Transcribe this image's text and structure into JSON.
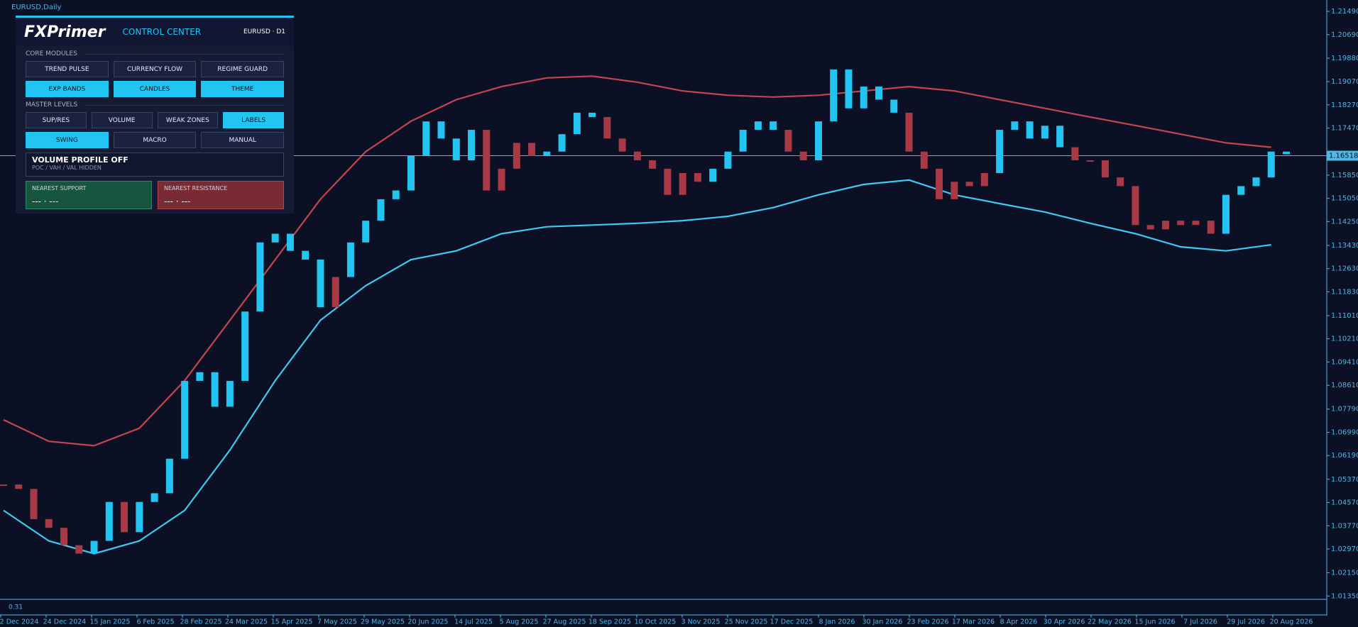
{
  "chart_data": {
    "type": "candlestick",
    "title": "EURUSD,Daily",
    "values": [
      1.0519,
      1.0504,
      1.04,
      1.037,
      1.031,
      1.0281,
      1.0325,
      1.0459,
      1.0355,
      1.0459,
      1.0489,
      1.0608,
      1.0876,
      1.0906,
      1.0787,
      1.0876,
      1.1115,
      1.1353,
      1.1383,
      1.1324,
      1.1294,
      1.113,
      1.1234,
      1.1353,
      1.1428,
      1.1502,
      1.1532,
      1.1651,
      1.177,
      1.1711,
      1.1636,
      1.1741,
      1.1532,
      1.1607,
      1.1696,
      1.1651,
      1.1666,
      1.1726,
      1.18,
      1.1785,
      1.1711,
      1.1666,
      1.1636,
      1.1607,
      1.1517,
      1.1592,
      1.1562,
      1.1607,
      1.1666,
      1.1741,
      1.177,
      1.1741,
      1.1666,
      1.1636,
      1.177,
      1.1949,
      1.1815,
      1.189,
      1.1845,
      1.18,
      1.1666,
      1.1607,
      1.1502,
      1.1562,
      1.1547,
      1.1592,
      1.1741,
      1.177,
      1.1711,
      1.1755,
      1.1681,
      1.1636,
      1.1636,
      1.1577,
      1.1547,
      1.1413,
      1.1398,
      1.1428,
      1.1413,
      1.1428,
      1.1383,
      1.1517,
      1.1547,
      1.1577,
      1.1666,
      1.1657
    ],
    "colors": [
      "#a83a46",
      "#a83a46",
      "#a83a46",
      "#a83a46",
      "#a83a46",
      "#a83a46",
      "#22c4f2",
      "#22c4f2",
      "#a83a46",
      "#22c4f2",
      "#22c4f2",
      "#22c4f2",
      "#22c4f2",
      "#22c4f2",
      "#22c4f2",
      "#22c4f2",
      "#22c4f2",
      "#22c4f2",
      "#22c4f2",
      "#22c4f2",
      "#22c4f2",
      "#22c4f2",
      "#a83a46",
      "#22c4f2",
      "#22c4f2",
      "#22c4f2",
      "#22c4f2",
      "#22c4f2",
      "#22c4f2",
      "#22c4f2",
      "#22c4f2",
      "#22c4f2",
      "#a83a46",
      "#a83a46",
      "#a83a46",
      "#a83a46",
      "#22c4f2",
      "#22c4f2",
      "#22c4f2",
      "#22c4f2",
      "#a83a46",
      "#a83a46",
      "#a83a46",
      "#a83a46",
      "#a83a46",
      "#a83a46",
      "#a83a46",
      "#22c4f2",
      "#22c4f2",
      "#22c4f2",
      "#22c4f2",
      "#22c4f2",
      "#a83a46",
      "#a83a46",
      "#22c4f2",
      "#22c4f2",
      "#22c4f2",
      "#22c4f2",
      "#22c4f2",
      "#22c4f2",
      "#a83a46",
      "#a83a46",
      "#a83a46",
      "#a83a46",
      "#a83a46",
      "#a83a46",
      "#22c4f2",
      "#22c4f2",
      "#22c4f2",
      "#22c4f2",
      "#22c4f2",
      "#a83a46",
      "#a83a46",
      "#a83a46",
      "#a83a46",
      "#a83a46",
      "#a83a46",
      "#a83a46",
      "#a83a46",
      "#a83a46",
      "#a83a46",
      "#22c4f2",
      "#22c4f2",
      "#22c4f2",
      "#22c4f2",
      "#22c4f2"
    ],
    "upper_band": {
      "color": "#c4454f",
      "x": [
        0,
        3,
        6,
        9,
        12,
        15,
        18,
        21,
        24,
        27,
        30,
        33,
        36,
        39,
        42,
        45,
        48,
        51,
        54,
        57,
        60,
        63,
        66,
        69,
        72,
        75,
        78,
        81,
        84
      ],
      "values": [
        1.0742,
        1.0668,
        1.0653,
        1.0713,
        1.0877,
        1.1085,
        1.1294,
        1.1502,
        1.1666,
        1.1771,
        1.1845,
        1.189,
        1.192,
        1.1926,
        1.1905,
        1.1875,
        1.186,
        1.1854,
        1.186,
        1.1875,
        1.189,
        1.1875,
        1.1845,
        1.1815,
        1.1785,
        1.1756,
        1.1726,
        1.1696,
        1.1681
      ]
    },
    "lower_band": {
      "color": "#3fcaf2",
      "x": [
        0,
        3,
        6,
        9,
        12,
        15,
        18,
        21,
        24,
        27,
        30,
        33,
        36,
        39,
        42,
        45,
        48,
        51,
        54,
        57,
        60,
        63,
        66,
        69,
        72,
        75,
        78,
        81,
        84
      ],
      "values": [
        1.043,
        1.0325,
        1.0281,
        1.0325,
        1.043,
        1.0638,
        1.0877,
        1.1085,
        1.1204,
        1.1294,
        1.1324,
        1.1383,
        1.1407,
        1.1413,
        1.1419,
        1.1428,
        1.1443,
        1.1473,
        1.1517,
        1.1553,
        1.1568,
        1.1517,
        1.1487,
        1.1458,
        1.1419,
        1.1383,
        1.1338,
        1.1324,
        1.1345
      ]
    },
    "current_price": {
      "value": 1.16518,
      "label": "1.16518"
    },
    "indicator_label": "0.31",
    "ylim": [
      1.0126,
      1.2176
    ],
    "yticks": [
      {
        "value": 1.2149,
        "label": "1.21490"
      },
      {
        "value": 1.2069,
        "label": "1.20690"
      },
      {
        "value": 1.1988,
        "label": "1.19880"
      },
      {
        "value": 1.1907,
        "label": "1.19070"
      },
      {
        "value": 1.1827,
        "label": "1.18270"
      },
      {
        "value": 1.1747,
        "label": "1.17470"
      },
      {
        "value": 1.1585,
        "label": "1.15850"
      },
      {
        "value": 1.1505,
        "label": "1.15050"
      },
      {
        "value": 1.1425,
        "label": "1.14250"
      },
      {
        "value": 1.1343,
        "label": "1.13430"
      },
      {
        "value": 1.1263,
        "label": "1.12630"
      },
      {
        "value": 1.1183,
        "label": "1.11830"
      },
      {
        "value": 1.1101,
        "label": "1.11010"
      },
      {
        "value": 1.1021,
        "label": "1.10210"
      },
      {
        "value": 1.0941,
        "label": "1.09410"
      },
      {
        "value": 1.0861,
        "label": "1.08610"
      },
      {
        "value": 1.0779,
        "label": "1.07790"
      },
      {
        "value": 1.0699,
        "label": "1.06990"
      },
      {
        "value": 1.0619,
        "label": "1.06190"
      },
      {
        "value": 1.0537,
        "label": "1.05370"
      },
      {
        "value": 1.0457,
        "label": "1.04570"
      },
      {
        "value": 1.0377,
        "label": "1.03770"
      },
      {
        "value": 1.0297,
        "label": "1.02970"
      },
      {
        "value": 1.0215,
        "label": "1.02150"
      },
      {
        "value": 1.0135,
        "label": "1.01350"
      }
    ],
    "xticks": [
      "2 Dec 2024",
      "24 Dec 2024",
      "15 Jan 2025",
      "6 Feb 2025",
      "28 Feb 2025",
      "24 Mar 2025",
      "15 Apr 2025",
      "7 May 2025",
      "29 May 2025",
      "20 Jun 2025",
      "14 Jul 2025",
      "5 Aug 2025",
      "27 Aug 2025",
      "18 Sep 2025",
      "10 Oct 2025",
      "3 Nov 2025",
      "25 Nov 2025",
      "17 Dec 2025",
      "8 Jan 2026",
      "30 Jan 2026",
      "23 Feb 2026",
      "17 Mar 2026",
      "8 Apr 2026",
      "30 Apr 2026",
      "22 May 2026",
      "15 Jun 2026",
      "7 Jul 2026",
      "29 Jul 2026",
      "20 Aug 2026"
    ]
  },
  "panel": {
    "logo": "FXPrimer",
    "title": "CONTROL CENTER",
    "symbol": "EURUSD · D1",
    "core_label": "CORE MODULES",
    "core_buttons": [
      {
        "label": "TREND PULSE",
        "active": false
      },
      {
        "label": "CURRENCY FLOW",
        "active": false
      },
      {
        "label": "REGIME GUARD",
        "active": false
      },
      {
        "label": "EXP BANDS",
        "active": true
      },
      {
        "label": "CANDLES",
        "active": true
      },
      {
        "label": "THEME",
        "active": true
      }
    ],
    "levels_label": "MASTER LEVELS",
    "level_buttons": [
      {
        "label": "SUP/RES",
        "active": false
      },
      {
        "label": "VOLUME",
        "active": false
      },
      {
        "label": "WEAK ZONES",
        "active": false
      },
      {
        "label": "LABELS",
        "active": true
      }
    ],
    "mode_buttons": [
      {
        "label": "SWING",
        "active": true
      },
      {
        "label": "MACRO",
        "active": false
      },
      {
        "label": "MANUAL",
        "active": false
      }
    ],
    "volume_title": "VOLUME PROFILE OFF",
    "volume_sub": "POC / VAH / VAL HIDDEN",
    "support_label": "NEAREST SUPPORT",
    "support_value": "---  ·  ---",
    "resistance_label": "NEAREST RESISTANCE",
    "resistance_value": "---  ·  ---"
  }
}
